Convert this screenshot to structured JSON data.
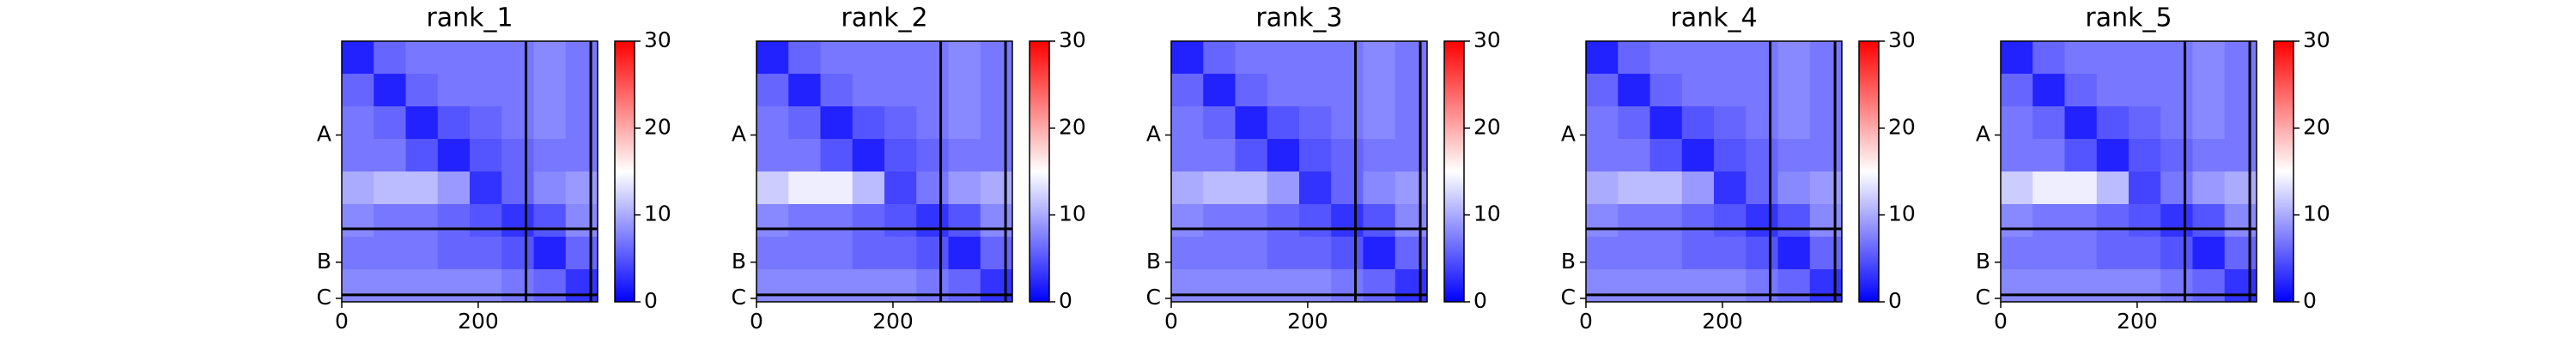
{
  "chart_data": [
    {
      "type": "heatmap",
      "title": "rank_1",
      "xlim": [
        0,
        375
      ],
      "ylim": [
        0,
        375
      ],
      "y_inverted": true,
      "xticks": [
        0,
        200
      ],
      "yticks": [
        {
          "value": 135,
          "label": "A"
        },
        {
          "value": 318,
          "label": "B"
        },
        {
          "value": 370,
          "label": "C"
        }
      ],
      "chain_breaks": [
        270,
        365
      ],
      "colormap": "bwr",
      "clim": [
        0,
        30
      ],
      "cticks": [
        0,
        10,
        20,
        30
      ],
      "matrix": [
        [
          2,
          6,
          7,
          7,
          7,
          7,
          8,
          7
        ],
        [
          6,
          2,
          6,
          7,
          7,
          7,
          8,
          7
        ],
        [
          7,
          6,
          2,
          5,
          6,
          7,
          8,
          7
        ],
        [
          7,
          7,
          5,
          2,
          5,
          6,
          7,
          7
        ],
        [
          10,
          11,
          11,
          9,
          3,
          6,
          8,
          9
        ],
        [
          8,
          7,
          7,
          6,
          5,
          3,
          5,
          8
        ],
        [
          7,
          7,
          7,
          6,
          6,
          5,
          2,
          6
        ],
        [
          8,
          8,
          8,
          8,
          8,
          7,
          6,
          3
        ]
      ]
    },
    {
      "type": "heatmap",
      "title": "rank_2",
      "xlim": [
        0,
        375
      ],
      "ylim": [
        0,
        375
      ],
      "y_inverted": true,
      "xticks": [
        0,
        200
      ],
      "yticks": [
        {
          "value": 135,
          "label": "A"
        },
        {
          "value": 318,
          "label": "B"
        },
        {
          "value": 370,
          "label": "C"
        }
      ],
      "chain_breaks": [
        270,
        365
      ],
      "colormap": "bwr",
      "clim": [
        0,
        30
      ],
      "cticks": [
        0,
        10,
        20,
        30
      ],
      "matrix": [
        [
          2,
          6,
          7,
          7,
          7,
          7,
          8,
          7
        ],
        [
          6,
          2,
          6,
          7,
          7,
          7,
          8,
          7
        ],
        [
          7,
          6,
          2,
          5,
          6,
          7,
          8,
          7
        ],
        [
          7,
          7,
          5,
          2,
          5,
          6,
          7,
          7
        ],
        [
          12,
          14,
          14,
          11,
          4,
          7,
          9,
          10
        ],
        [
          8,
          7,
          7,
          6,
          5,
          3,
          5,
          8
        ],
        [
          7,
          7,
          7,
          6,
          6,
          5,
          2,
          6
        ],
        [
          8,
          8,
          8,
          8,
          8,
          7,
          6,
          3
        ]
      ]
    },
    {
      "type": "heatmap",
      "title": "rank_3",
      "xlim": [
        0,
        375
      ],
      "ylim": [
        0,
        375
      ],
      "y_inverted": true,
      "xticks": [
        0,
        200
      ],
      "yticks": [
        {
          "value": 135,
          "label": "A"
        },
        {
          "value": 318,
          "label": "B"
        },
        {
          "value": 370,
          "label": "C"
        }
      ],
      "chain_breaks": [
        270,
        365
      ],
      "colormap": "bwr",
      "clim": [
        0,
        30
      ],
      "cticks": [
        0,
        10,
        20,
        30
      ],
      "matrix": [
        [
          2,
          6,
          7,
          7,
          7,
          7,
          8,
          7
        ],
        [
          6,
          2,
          6,
          7,
          7,
          7,
          8,
          7
        ],
        [
          7,
          6,
          2,
          5,
          6,
          7,
          8,
          7
        ],
        [
          7,
          7,
          5,
          2,
          5,
          6,
          7,
          7
        ],
        [
          10,
          11,
          11,
          9,
          3,
          6,
          8,
          9
        ],
        [
          8,
          7,
          7,
          6,
          5,
          3,
          5,
          8
        ],
        [
          7,
          7,
          7,
          6,
          6,
          5,
          2,
          6
        ],
        [
          8,
          8,
          8,
          8,
          8,
          7,
          6,
          3
        ]
      ]
    },
    {
      "type": "heatmap",
      "title": "rank_4",
      "xlim": [
        0,
        375
      ],
      "ylim": [
        0,
        375
      ],
      "y_inverted": true,
      "xticks": [
        0,
        200
      ],
      "yticks": [
        {
          "value": 135,
          "label": "A"
        },
        {
          "value": 318,
          "label": "B"
        },
        {
          "value": 370,
          "label": "C"
        }
      ],
      "chain_breaks": [
        270,
        365
      ],
      "colormap": "bwr",
      "clim": [
        0,
        30
      ],
      "cticks": [
        0,
        10,
        20,
        30
      ],
      "matrix": [
        [
          2,
          6,
          7,
          7,
          7,
          7,
          8,
          7
        ],
        [
          6,
          2,
          6,
          7,
          7,
          7,
          8,
          7
        ],
        [
          7,
          6,
          2,
          5,
          6,
          7,
          8,
          7
        ],
        [
          7,
          7,
          5,
          2,
          5,
          6,
          7,
          7
        ],
        [
          10,
          11,
          11,
          9,
          3,
          6,
          8,
          9
        ],
        [
          8,
          7,
          7,
          6,
          5,
          3,
          5,
          8
        ],
        [
          7,
          7,
          7,
          6,
          6,
          5,
          2,
          6
        ],
        [
          8,
          8,
          8,
          8,
          8,
          7,
          6,
          3
        ]
      ]
    },
    {
      "type": "heatmap",
      "title": "rank_5",
      "xlim": [
        0,
        375
      ],
      "ylim": [
        0,
        375
      ],
      "y_inverted": true,
      "xticks": [
        0,
        200
      ],
      "yticks": [
        {
          "value": 135,
          "label": "A"
        },
        {
          "value": 318,
          "label": "B"
        },
        {
          "value": 370,
          "label": "C"
        }
      ],
      "chain_breaks": [
        270,
        365
      ],
      "colormap": "bwr",
      "clim": [
        0,
        30
      ],
      "cticks": [
        0,
        10,
        20,
        30
      ],
      "matrix": [
        [
          2,
          6,
          7,
          7,
          7,
          7,
          8,
          7
        ],
        [
          6,
          2,
          6,
          7,
          7,
          7,
          8,
          7
        ],
        [
          7,
          6,
          2,
          5,
          6,
          7,
          8,
          7
        ],
        [
          7,
          7,
          5,
          2,
          5,
          6,
          7,
          7
        ],
        [
          12,
          14,
          14,
          11,
          4,
          7,
          9,
          10
        ],
        [
          8,
          7,
          7,
          6,
          5,
          3,
          5,
          8
        ],
        [
          7,
          7,
          7,
          6,
          6,
          5,
          2,
          6
        ],
        [
          8,
          8,
          8,
          8,
          8,
          7,
          6,
          3
        ]
      ]
    }
  ]
}
